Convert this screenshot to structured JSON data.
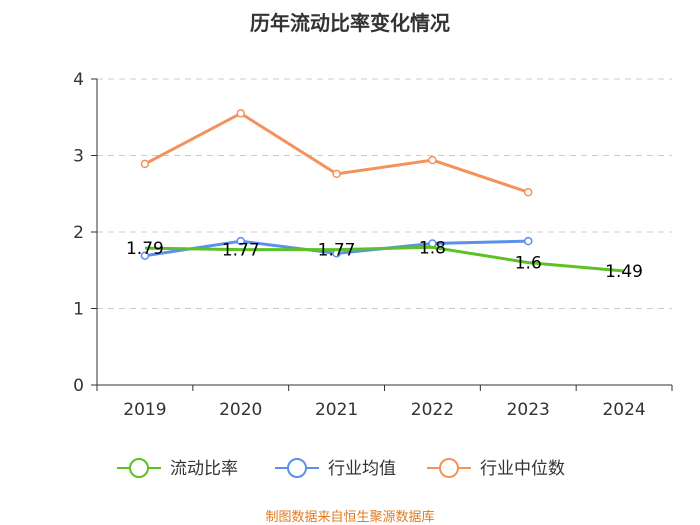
{
  "chart_data": {
    "type": "line",
    "title": "历年流动比率变化情况",
    "categories": [
      "2019",
      "2020",
      "2021",
      "2022",
      "2023",
      "2024"
    ],
    "ylim": [
      0,
      4
    ],
    "yticks": [
      "0",
      "1",
      "2",
      "3",
      "4"
    ],
    "grid": true,
    "legend_position": "bottom",
    "series": [
      {
        "name": "流动比率",
        "color": "#5cc224",
        "values": [
          1.79,
          1.77,
          1.77,
          1.8,
          1.6,
          1.49
        ],
        "labels": [
          "1.79",
          "1.77",
          "1.77",
          "1.8",
          "1.6",
          "1.49"
        ]
      },
      {
        "name": "行业均值",
        "color": "#5b8ff0",
        "values": [
          1.69,
          1.88,
          1.72,
          1.85,
          1.88,
          null
        ]
      },
      {
        "name": "行业中位数",
        "color": "#f4925c",
        "values": [
          2.89,
          3.55,
          2.76,
          2.94,
          2.52,
          null
        ]
      }
    ],
    "source": "制图数据来自恒生聚源数据库"
  }
}
